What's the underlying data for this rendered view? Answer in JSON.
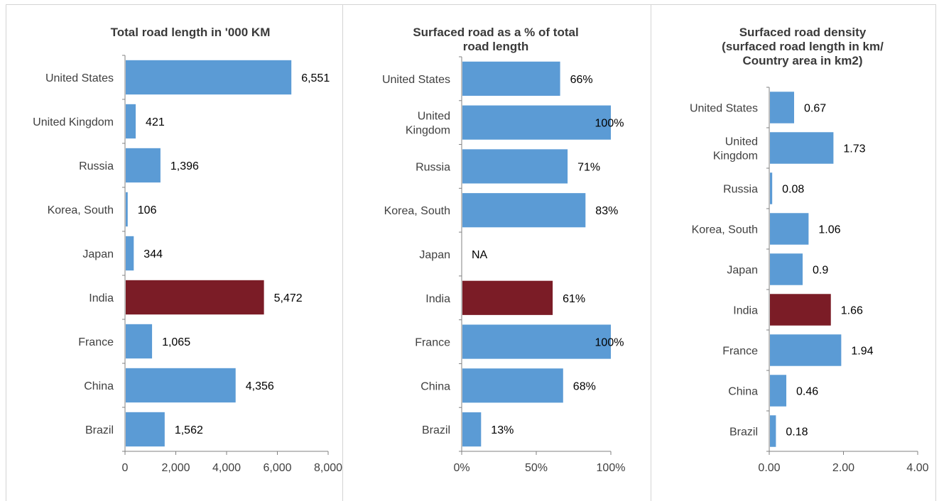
{
  "colors": {
    "bar": "#5b9bd5",
    "highlight": "#7b1c26",
    "axis": "#808080"
  },
  "chart_data": [
    {
      "type": "bar",
      "orientation": "horizontal",
      "title_lines": [
        "Total road length in '000 KM"
      ],
      "categories": [
        "United States",
        "United Kingdom",
        "Russia",
        "Korea, South",
        "Japan",
        "India",
        "France",
        "China",
        "Brazil"
      ],
      "category_lines": [
        [
          "United States"
        ],
        [
          "United Kingdom"
        ],
        [
          "Russia"
        ],
        [
          "Korea, South"
        ],
        [
          "Japan"
        ],
        [
          "India"
        ],
        [
          "France"
        ],
        [
          "China"
        ],
        [
          "Brazil"
        ]
      ],
      "values": [
        6551,
        421,
        1396,
        106,
        344,
        5472,
        1065,
        4356,
        1562
      ],
      "data_labels": [
        "6,551",
        "421",
        "1,396",
        "106",
        "344",
        "5,472",
        "1,065",
        "4,356",
        "1,562"
      ],
      "highlight": "India",
      "xlim": [
        0,
        8000
      ],
      "xticks": [
        0,
        2000,
        4000,
        6000,
        8000
      ],
      "xtick_labels": [
        "0",
        "2,000",
        "4,000",
        "6,000",
        "8,000"
      ],
      "grid": false
    },
    {
      "type": "bar",
      "orientation": "horizontal",
      "title_lines": [
        "Surfaced road as a % of total",
        "road length"
      ],
      "categories": [
        "United States",
        "United Kingdom",
        "Russia",
        "Korea, South",
        "Japan",
        "India",
        "France",
        "China",
        "Brazil"
      ],
      "category_lines": [
        [
          "United States"
        ],
        [
          "United",
          "Kingdom"
        ],
        [
          "Russia"
        ],
        [
          "Korea, South"
        ],
        [
          "Japan"
        ],
        [
          "India"
        ],
        [
          "France"
        ],
        [
          "China"
        ],
        [
          "Brazil"
        ]
      ],
      "values": [
        66,
        100,
        71,
        83,
        null,
        61,
        100,
        68,
        13
      ],
      "data_labels": [
        "66%",
        "100%",
        "71%",
        "83%",
        "NA",
        "61%",
        "100%",
        "68%",
        "13%"
      ],
      "highlight": "India",
      "xlim": [
        0,
        100
      ],
      "xticks": [
        0,
        50,
        100
      ],
      "xtick_labels": [
        "0%",
        "50%",
        "100%"
      ],
      "grid": false
    },
    {
      "type": "bar",
      "orientation": "horizontal",
      "title_lines": [
        "Surfaced road density",
        "(surfaced road length in km/",
        "Country area in km2)"
      ],
      "categories": [
        "United States",
        "United Kingdom",
        "Russia",
        "Korea, South",
        "Japan",
        "India",
        "France",
        "China",
        "Brazil"
      ],
      "category_lines": [
        [
          "United States"
        ],
        [
          "United",
          "Kingdom"
        ],
        [
          "Russia"
        ],
        [
          "Korea, South"
        ],
        [
          "Japan"
        ],
        [
          "India"
        ],
        [
          "France"
        ],
        [
          "China"
        ],
        [
          "Brazil"
        ]
      ],
      "values": [
        0.67,
        1.73,
        0.08,
        1.06,
        0.9,
        1.66,
        1.94,
        0.46,
        0.18
      ],
      "data_labels": [
        "0.67",
        "1.73",
        "0.08",
        "1.06",
        "0.9",
        "1.66",
        "1.94",
        "0.46",
        "0.18"
      ],
      "highlight": "India",
      "xlim": [
        0,
        4
      ],
      "xticks": [
        0,
        2,
        4
      ],
      "xtick_labels": [
        "0.00",
        "2.00",
        "4.00"
      ],
      "grid": false
    }
  ]
}
